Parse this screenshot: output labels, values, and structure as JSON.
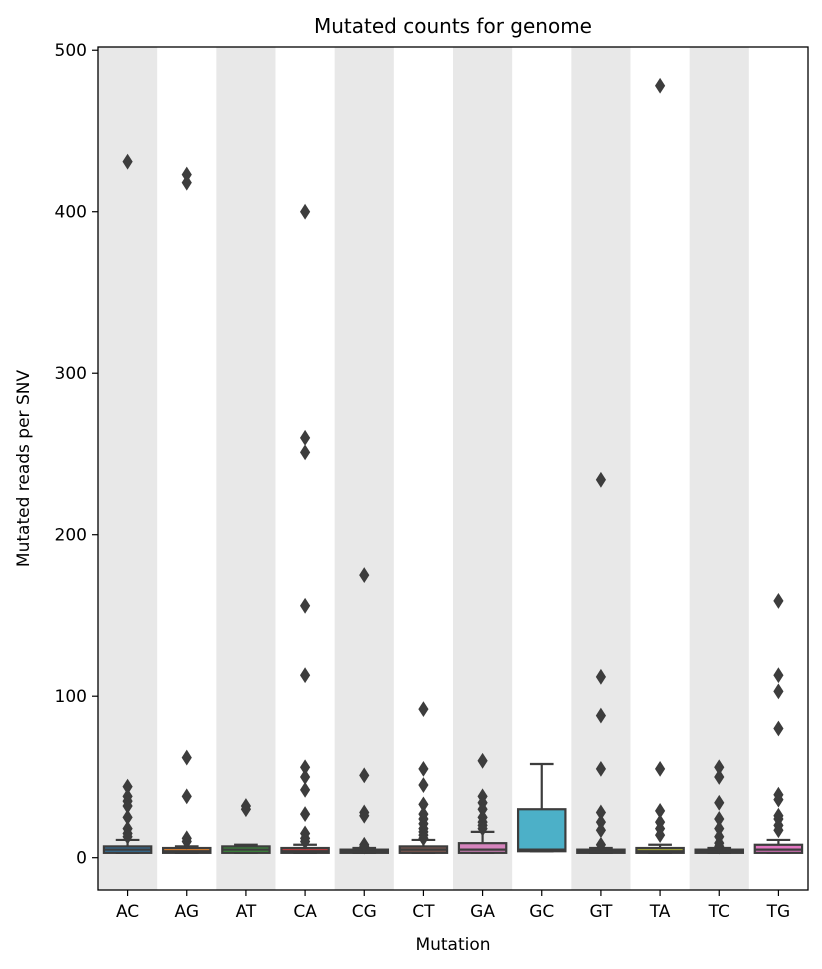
{
  "chart_data": {
    "type": "box",
    "title": "Mutated counts for genome",
    "xlabel": "Mutation",
    "ylabel": "Mutated reads per SNV",
    "ylim": [
      -20,
      502
    ],
    "yticks": [
      0,
      100,
      200,
      300,
      400,
      500
    ],
    "categories": [
      "AC",
      "AG",
      "AT",
      "CA",
      "CG",
      "CT",
      "GA",
      "GC",
      "GT",
      "TA",
      "TC",
      "TG"
    ],
    "shaded_categories": [
      "AC",
      "AT",
      "CG",
      "GA",
      "GT",
      "TC"
    ],
    "band_color": "#e8e8e8",
    "box_colors": [
      "#3274a1",
      "#e1812c",
      "#3a923a",
      "#c03d3e",
      "#9372b2",
      "#845b53",
      "#d684bd",
      "#4cb0c8",
      "#7f7f7f",
      "#a9aa35",
      "#2aa7be",
      "#e377c2"
    ],
    "box_edge_color": "#3d3d3d",
    "boxes": [
      {
        "category": "AC",
        "q1": 3,
        "median": 5,
        "q3": 7,
        "whisker_low": 3,
        "whisker_high": 11,
        "outliers": [
          431,
          44,
          38,
          35,
          32,
          25,
          18,
          15,
          13
        ]
      },
      {
        "category": "AG",
        "q1": 3,
        "median": 4,
        "q3": 6,
        "whisker_low": 3,
        "whisker_high": 7,
        "outliers": [
          423,
          418,
          62,
          38,
          12,
          10
        ]
      },
      {
        "category": "AT",
        "q1": 3,
        "median": 5,
        "q3": 7,
        "whisker_low": 3,
        "whisker_high": 8,
        "outliers": [
          32,
          30
        ]
      },
      {
        "category": "CA",
        "q1": 3,
        "median": 4,
        "q3": 6,
        "whisker_low": 3,
        "whisker_high": 8,
        "outliers": [
          400,
          260,
          251,
          156,
          113,
          56,
          50,
          42,
          27,
          15,
          12,
          10
        ]
      },
      {
        "category": "CG",
        "q1": 3,
        "median": 4,
        "q3": 5,
        "whisker_low": 3,
        "whisker_high": 6,
        "outliers": [
          175,
          51,
          28,
          26,
          8,
          7
        ]
      },
      {
        "category": "CT",
        "q1": 3,
        "median": 5,
        "q3": 7,
        "whisker_low": 3,
        "whisker_high": 11,
        "outliers": [
          92,
          55,
          45,
          33,
          27,
          24,
          21,
          18,
          16,
          14,
          12
        ]
      },
      {
        "category": "GA",
        "q1": 3,
        "median": 5,
        "q3": 9,
        "whisker_low": 3,
        "whisker_high": 16,
        "outliers": [
          60,
          38,
          34,
          30,
          25,
          22,
          20,
          18
        ]
      },
      {
        "category": "GC",
        "q1": 4,
        "median": 5,
        "q3": 30,
        "whisker_low": 4,
        "whisker_high": 58,
        "outliers": []
      },
      {
        "category": "GT",
        "q1": 3,
        "median": 4,
        "q3": 5,
        "whisker_low": 3,
        "whisker_high": 6,
        "outliers": [
          234,
          112,
          88,
          55,
          28,
          22,
          17,
          8
        ]
      },
      {
        "category": "TA",
        "q1": 3,
        "median": 4,
        "q3": 6,
        "whisker_low": 3,
        "whisker_high": 8,
        "outliers": [
          478,
          55,
          29,
          22,
          18,
          14
        ]
      },
      {
        "category": "TC",
        "q1": 3,
        "median": 4,
        "q3": 5,
        "whisker_low": 3,
        "whisker_high": 6,
        "outliers": [
          56,
          50,
          34,
          24,
          18,
          13,
          9,
          7
        ]
      },
      {
        "category": "TG",
        "q1": 3,
        "median": 5,
        "q3": 8,
        "whisker_low": 3,
        "whisker_high": 11,
        "outliers": [
          159,
          113,
          103,
          80,
          39,
          36,
          26,
          24,
          20,
          17
        ]
      }
    ]
  }
}
